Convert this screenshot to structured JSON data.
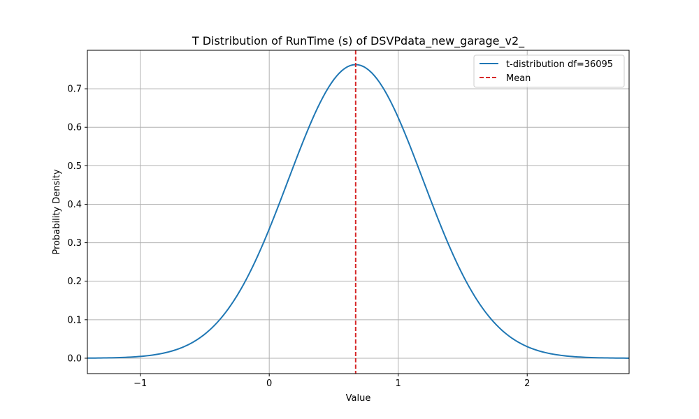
{
  "chart_data": {
    "type": "line",
    "title": "T Distribution of RunTime (s) of DSVPdata_new_garage_v2_",
    "xlabel": "Value",
    "ylabel": "Probability Density",
    "xlim": [
      -1.41,
      2.79
    ],
    "ylim": [
      -0.04,
      0.8
    ],
    "xticks": [
      -1,
      0,
      1,
      2
    ],
    "xtick_labels": [
      "−1",
      "0",
      "1",
      "2"
    ],
    "yticks": [
      0.0,
      0.1,
      0.2,
      0.3,
      0.4,
      0.5,
      0.6,
      0.7
    ],
    "ytick_labels": [
      "0.0",
      "0.1",
      "0.2",
      "0.3",
      "0.4",
      "0.5",
      "0.6",
      "0.7"
    ],
    "grid": true,
    "legend_position": "top-right",
    "series": [
      {
        "name": "t-distribution df=36095",
        "kind": "line",
        "color": "#1f77b4",
        "distribution": {
          "df": 36095,
          "mean": 0.67,
          "scale": 0.523
        },
        "x_range": [
          -1.41,
          2.79
        ]
      },
      {
        "name": "Mean",
        "kind": "vline",
        "color": "#d62728",
        "style": "dashed",
        "x": 0.67
      }
    ]
  }
}
